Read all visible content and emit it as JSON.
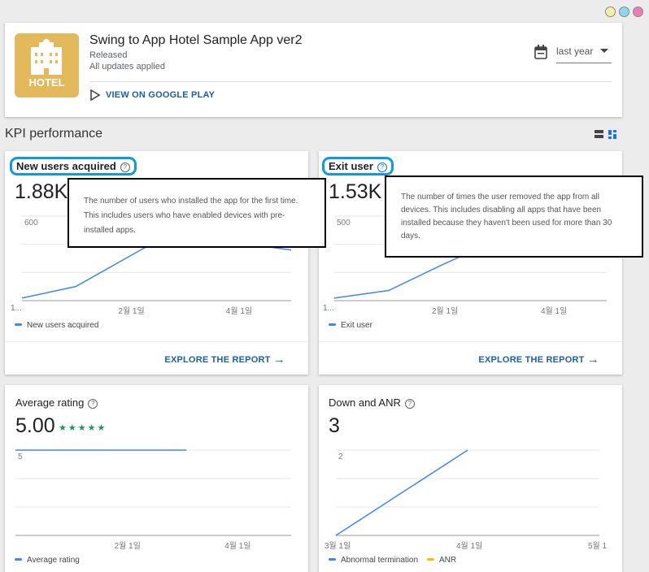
{
  "window": {
    "dots": [
      "#f6f0a6",
      "#8fd6ef",
      "#ef7bb5"
    ]
  },
  "app": {
    "icon_text": "HOTEL",
    "icon_color": "#e3b95b",
    "title": "Swing to App Hotel Sample App ver2",
    "status": "Released",
    "updates": "All updates applied",
    "play_link": "VIEW ON GOOGLE PLAY"
  },
  "date_range": {
    "selected": "last year"
  },
  "section": {
    "title": "KPI performance"
  },
  "cards": [
    {
      "title": "New users acquired",
      "value": "1.88K",
      "tooltip": "The number of users who installed the app for the first time. This includes users who have enabled devices with pre-installed apps.",
      "explore": "EXPLORE THE REPORT",
      "legend": [
        "New users acquired"
      ]
    },
    {
      "title": "Exit user",
      "value": "1.53K",
      "tooltip": "The number of times the user removed the app from all devices. This includes disabling all apps that have been installed because they haven't been used for more than 30 days.",
      "explore": "EXPLORE THE REPORT",
      "legend": [
        "Exit user"
      ]
    },
    {
      "title": "Average rating",
      "value": "5.00",
      "stars": "★★★★★",
      "legend": [
        "Average rating"
      ]
    },
    {
      "title": "Down and ANR",
      "value": "3",
      "legend": [
        "Abnormal termination",
        "ANR"
      ]
    }
  ],
  "chart_data": [
    {
      "type": "line",
      "ytick": "600",
      "ylim": [
        0,
        600
      ],
      "xlim": [
        -1,
        4
      ],
      "xticks": [
        {
          "x": -1,
          "label": "1..."
        },
        {
          "x": 1,
          "label": "2월 1일"
        },
        {
          "x": 3,
          "label": "4월 1일"
        }
      ],
      "series": [
        {
          "name": "New users acquired",
          "color": "#4285f4",
          "points": [
            [
              -1,
              18
            ],
            [
              0,
              100
            ],
            [
              1.3,
              380
            ],
            [
              2,
              420
            ],
            [
              3,
              410
            ],
            [
              4,
              360
            ]
          ]
        }
      ]
    },
    {
      "type": "line",
      "ytick": "500",
      "ylim": [
        0,
        500
      ],
      "xlim": [
        -1,
        4
      ],
      "xticks": [
        {
          "x": -1,
          "label": "1..."
        },
        {
          "x": 1,
          "label": "2월 1일"
        },
        {
          "x": 3,
          "label": "4월 1일"
        }
      ],
      "series": [
        {
          "name": "Exit user",
          "color": "#4285f4",
          "points": [
            [
              -1,
              15
            ],
            [
              0,
              60
            ],
            [
              1,
              215
            ],
            [
              2,
              360
            ],
            [
              3,
              380
            ],
            [
              4,
              340
            ]
          ]
        }
      ]
    },
    {
      "type": "line",
      "ytick": "5",
      "ylim": [
        0,
        5
      ],
      "xlim": [
        -1,
        4
      ],
      "xticks": [
        {
          "x": 1,
          "label": "2월 1일"
        },
        {
          "x": 3,
          "label": "4월 1일"
        }
      ],
      "series": [
        {
          "name": "Average rating",
          "color": "#4285f4",
          "points": [
            [
              -1,
              5
            ],
            [
              2.1,
              5
            ]
          ]
        }
      ]
    },
    {
      "type": "line",
      "ytick": "2",
      "ylim": [
        0,
        2
      ],
      "xlim": [
        0,
        5
      ],
      "xticks": [
        {
          "x": 0,
          "label": "3월 1일"
        },
        {
          "x": 2.5,
          "label": "4월 1일"
        },
        {
          "x": 5,
          "label": "5월 1"
        }
      ],
      "series": [
        {
          "name": "Abnormal termination",
          "color": "#4285f4",
          "points": [
            [
              0,
              0
            ],
            [
              2.5,
              2
            ]
          ]
        },
        {
          "name": "ANR",
          "color": "#fbbc04",
          "points": []
        }
      ]
    }
  ]
}
